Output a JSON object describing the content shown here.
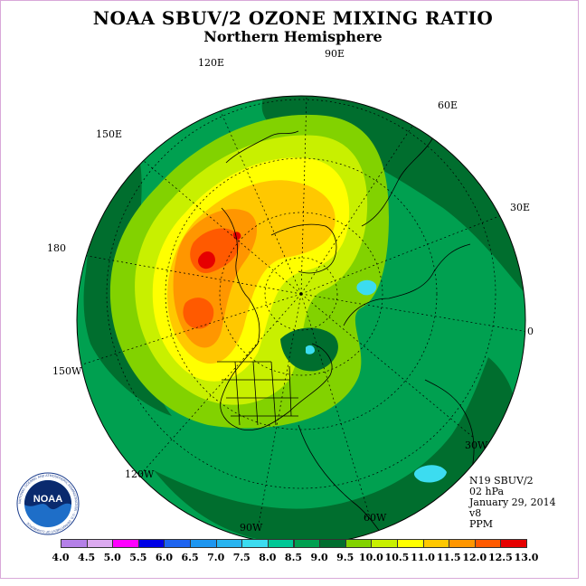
{
  "header": {
    "title": "NOAA SBUV/2 OZONE MIXING RATIO",
    "subtitle": "Northern Hemisphere"
  },
  "map": {
    "projection": "north-polar-stereographic",
    "longitude_labels": [
      "90E",
      "60E",
      "30E",
      "0",
      "30W",
      "60W",
      "90W",
      "120W",
      "150W",
      "180",
      "150E",
      "120E"
    ]
  },
  "info": {
    "satellite": "N19 SBUV/2",
    "level": "02 hPa",
    "date": "January 29, 2014",
    "version": "v8",
    "units": "PPM"
  },
  "logo": {
    "text": "NOAA",
    "ring_text": "NATIONAL OCEANIC AND ATMOSPHERIC ADMINISTRATION · U.S. DEPARTMENT OF COMMERCE"
  },
  "colorbar": {
    "tick_labels": [
      "4.0",
      "4.5",
      "5.0",
      "5.5",
      "6.0",
      "6.5",
      "7.0",
      "7.5",
      "8.0",
      "8.5",
      "9.0",
      "9.5",
      "10.0",
      "10.5",
      "11.0",
      "11.5",
      "12.0",
      "12.5",
      "13.0"
    ],
    "colors": [
      "#b480e8",
      "#dcaaf0",
      "#ff00ff",
      "#0000e6",
      "#1e64f0",
      "#1e96f0",
      "#28b4f0",
      "#3cdcf0",
      "#00c896",
      "#00a050",
      "#006e2e",
      "#82d200",
      "#c8f000",
      "#ffff00",
      "#ffc800",
      "#ff9600",
      "#ff5a00",
      "#e60000",
      "#8c5a3c"
    ]
  },
  "contour_colors": {
    "outer": "#00a050",
    "dark": "#006e2e",
    "band_9_5": "#82d200",
    "band_10": "#c8f000",
    "band_10_5": "#ffff00",
    "band_11": "#ffc800",
    "band_11_5": "#ff9600",
    "band_12": "#ff5a00",
    "band_12_5": "#e60000",
    "low": "#3cdcf0"
  }
}
